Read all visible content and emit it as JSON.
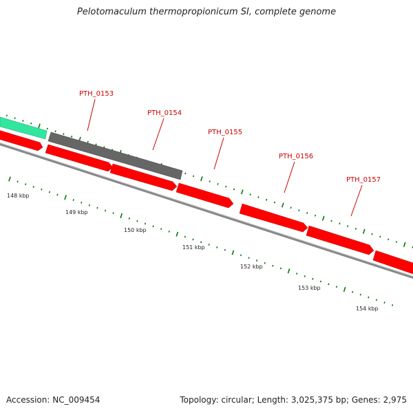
{
  "title": "Pelotomaculum thermopropionicum SI, complete genome",
  "footer": {
    "accession": "Accession: NC_009454",
    "summary": "Topology: circular; Length: 3,025,375 bp; Genes: 2,975"
  },
  "colors": {
    "forward_gene": "#ff0000",
    "reverse_gene_other": "#666666",
    "rna_gene": "#33e6a0",
    "label": "#cc0000",
    "tick": "#007700",
    "backbone": "#888888"
  },
  "gene_labels": [
    "PTH_0153",
    "PTH_0154",
    "PTH_0155",
    "PTH_0156",
    "PTH_0157"
  ],
  "kbp_labels": [
    "148 kbp",
    "149 kbp",
    "150 kbp",
    "151 kbp",
    "152 kbp",
    "153 kbp",
    "154 kbp"
  ]
}
